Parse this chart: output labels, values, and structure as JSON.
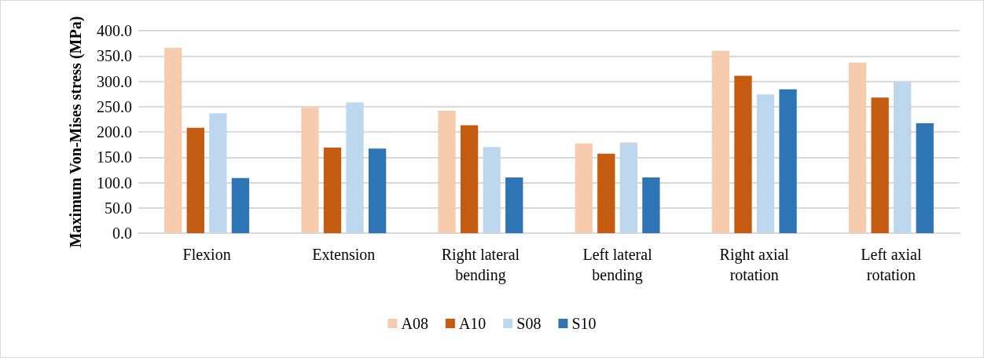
{
  "chart_data": {
    "type": "bar",
    "ylabel": "Maximum Von-Mises stress (MPa)",
    "categories": [
      "Flexion",
      "Extension",
      "Right lateral bending",
      "Left lateral bending",
      "Right axial rotation",
      "Left axial rotation"
    ],
    "series": [
      {
        "name": "A08",
        "color": "#f7cbad",
        "values": [
          366,
          248,
          242,
          177,
          360,
          337
        ]
      },
      {
        "name": "A10",
        "color": "#c55a11",
        "values": [
          208,
          169,
          213,
          157,
          311,
          268
        ]
      },
      {
        "name": "S08",
        "color": "#bdd7ee",
        "values": [
          237,
          258,
          170,
          179,
          274,
          299
        ]
      },
      {
        "name": "S10",
        "color": "#2e75b6",
        "values": [
          109,
          167,
          110,
          110,
          284,
          217
        ]
      }
    ],
    "ylim": [
      0,
      400
    ],
    "yticks": [
      {
        "value": 0,
        "label": "0.0"
      },
      {
        "value": 50,
        "label": "50.0"
      },
      {
        "value": 100,
        "label": "100.0"
      },
      {
        "value": 150,
        "label": "150.0"
      },
      {
        "value": 200,
        "label": "200.0"
      },
      {
        "value": 250,
        "label": "250.0"
      },
      {
        "value": 300,
        "label": "300.0"
      },
      {
        "value": 350,
        "label": "350.0"
      },
      {
        "value": 400,
        "label": "400.0"
      }
    ],
    "grid": true,
    "legend": "bottom"
  }
}
